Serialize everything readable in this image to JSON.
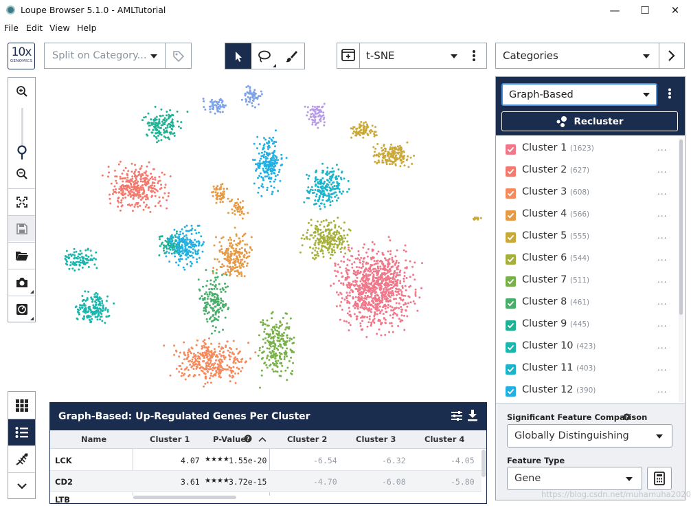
{
  "window": {
    "title": "Loupe Browser 5.1.0 - AMLTutorial",
    "controls": {
      "minimize": "—",
      "maximize": "☐",
      "close": "✕"
    }
  },
  "menu": [
    "File",
    "Edit",
    "View",
    "Help"
  ],
  "logo": {
    "top": "10x",
    "bottom": "GENOMICS"
  },
  "toolbar": {
    "split_placeholder": "Split on Category...",
    "projection": "t-SNE",
    "category_select": "Categories"
  },
  "right_panel": {
    "clustering": "Graph-Based",
    "recluster_label": "Recluster",
    "clusters": [
      {
        "name": "Cluster 1",
        "count": "(1623)",
        "color": "#f0788a"
      },
      {
        "name": "Cluster 2",
        "count": "(627)",
        "color": "#f37a6e"
      },
      {
        "name": "Cluster 3",
        "count": "(608)",
        "color": "#f58a5c"
      },
      {
        "name": "Cluster 4",
        "count": "(566)",
        "color": "#e69a45"
      },
      {
        "name": "Cluster 5",
        "count": "(555)",
        "color": "#c9a93a"
      },
      {
        "name": "Cluster 6",
        "count": "(544)",
        "color": "#a6b03c"
      },
      {
        "name": "Cluster 7",
        "count": "(511)",
        "color": "#78b04a"
      },
      {
        "name": "Cluster 8",
        "count": "(461)",
        "color": "#48ae6a"
      },
      {
        "name": "Cluster 9",
        "count": "(445)",
        "color": "#20b294"
      },
      {
        "name": "Cluster 10",
        "count": "(423)",
        "color": "#1bb6ad"
      },
      {
        "name": "Cluster 11",
        "count": "(403)",
        "color": "#1cb4cb"
      },
      {
        "name": "Cluster 12",
        "count": "(390)",
        "color": "#22b0e2"
      }
    ],
    "more_label": "...",
    "sig_label": "Significant Feature Comparison",
    "sig_value": "Globally Distinguishing",
    "feature_type_label": "Feature Type",
    "feature_type_value": "Gene"
  },
  "table": {
    "title": "Graph-Based: Up-Regulated Genes Per Cluster",
    "columns": [
      "Name",
      "Cluster 1",
      "P-Value",
      "Cluster 2",
      "Cluster 3",
      "Cluster 4"
    ],
    "rows": [
      {
        "name": "LCK",
        "c1": "4.07",
        "stars": "★★★★",
        "p": "1.55e-20",
        "c2": "-6.54",
        "c3": "-6.32",
        "c4": "-4.05"
      },
      {
        "name": "CD2",
        "c1": "3.61",
        "stars": "★★★★",
        "p": "3.72e-15",
        "c2": "-4.70",
        "c3": "-6.08",
        "c4": "-5.80"
      }
    ],
    "next_row_partial": "LTB"
  },
  "watermark": "https://blog.csdn.net/muhamuha2020",
  "plot_colors": [
    "#f0788a",
    "#f37a6e",
    "#f58a5c",
    "#e69a45",
    "#c9a93a",
    "#a6b03c",
    "#78b04a",
    "#48ae6a",
    "#20b294",
    "#1bb6ad",
    "#1cb4cb",
    "#22b0e2",
    "#7ea3e8",
    "#b79be6"
  ]
}
